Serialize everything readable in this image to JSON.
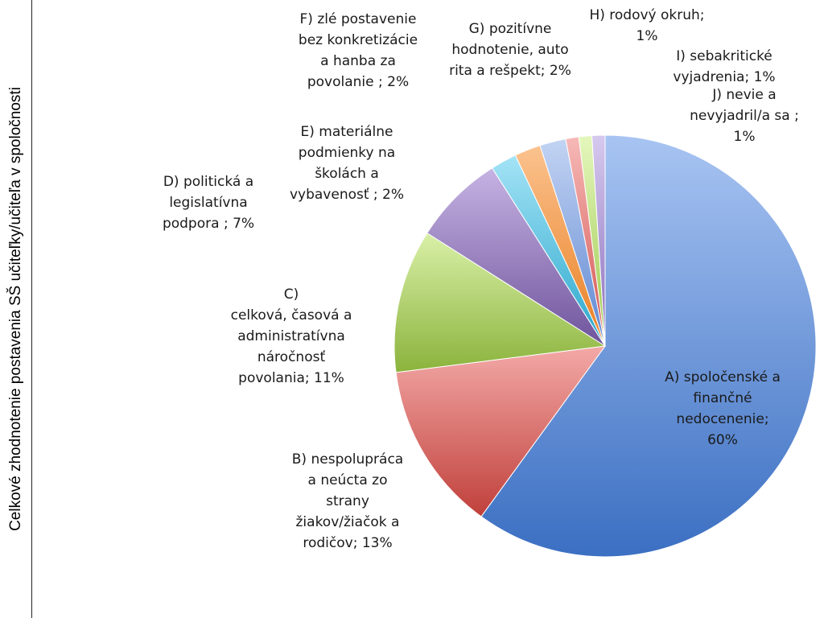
{
  "side_title": "Celkové zhodnotenie postavenia SŠ učiteľky/učiteľa v spoločnosti",
  "chart_data": {
    "type": "pie",
    "title": "",
    "slices": [
      {
        "key": "A",
        "value": 60,
        "color_light": "#a8c4f2",
        "color_dark": "#3b6fc2",
        "label_lines": [
          "A) spoločenské a",
          "finančné",
          "nedocenenie;",
          "60%"
        ]
      },
      {
        "key": "B",
        "value": 13,
        "color_light": "#f3a9a7",
        "color_dark": "#c0403b",
        "label_lines": [
          "B) nespolupráca",
          "a neúcta zo",
          "strany",
          "žiakov/žiačok a",
          "rodičov; 13%"
        ]
      },
      {
        "key": "C",
        "value": 11,
        "color_light": "#d9f0a8",
        "color_dark": "#8bb33c",
        "label_lines": [
          "C)",
          "celková, časová a",
          "administratívna",
          "náročnosť",
          "povolania; 11%"
        ]
      },
      {
        "key": "D",
        "value": 7,
        "color_light": "#c6b3e3",
        "color_dark": "#6f549c",
        "label_lines": [
          "D) politická a",
          "legislatívna",
          "podpora ; 7%"
        ]
      },
      {
        "key": "E",
        "value": 2,
        "color_light": "#a4e3f6",
        "color_dark": "#2aa7cc",
        "label_lines": [
          "E) materiálne",
          "podmienky na",
          "školách a",
          "vybavenosť ; 2%"
        ]
      },
      {
        "key": "F",
        "value": 2,
        "color_light": "#fbc28e",
        "color_dark": "#e87f22",
        "label_lines": [
          "F) zlé postavenie",
          "bez konkretizácie",
          "a hanba za",
          "povolanie ; 2%"
        ]
      },
      {
        "key": "G",
        "value": 2,
        "color_light": "#c3d4f3",
        "color_dark": "#5d86d1",
        "label_lines": [
          "G) pozitívne",
          "hodnotenie, auto",
          "rita a rešpekt; 2%"
        ]
      },
      {
        "key": "H",
        "value": 1,
        "color_light": "#f6b9b7",
        "color_dark": "#d2524d",
        "label_lines": [
          "H) rodový okruh;",
          "1%"
        ]
      },
      {
        "key": "I",
        "value": 1,
        "color_light": "#e4f7bd",
        "color_dark": "#9cc74a",
        "label_lines": [
          "I) sebakritické",
          "vyjadrenia; 1%"
        ]
      },
      {
        "key": "J",
        "value": 1,
        "color_light": "#d6c9ee",
        "color_dark": "#8a6fbd",
        "label_lines": [
          "J) nevie a",
          "nevyjadril/a sa ;",
          "1%"
        ]
      }
    ]
  }
}
